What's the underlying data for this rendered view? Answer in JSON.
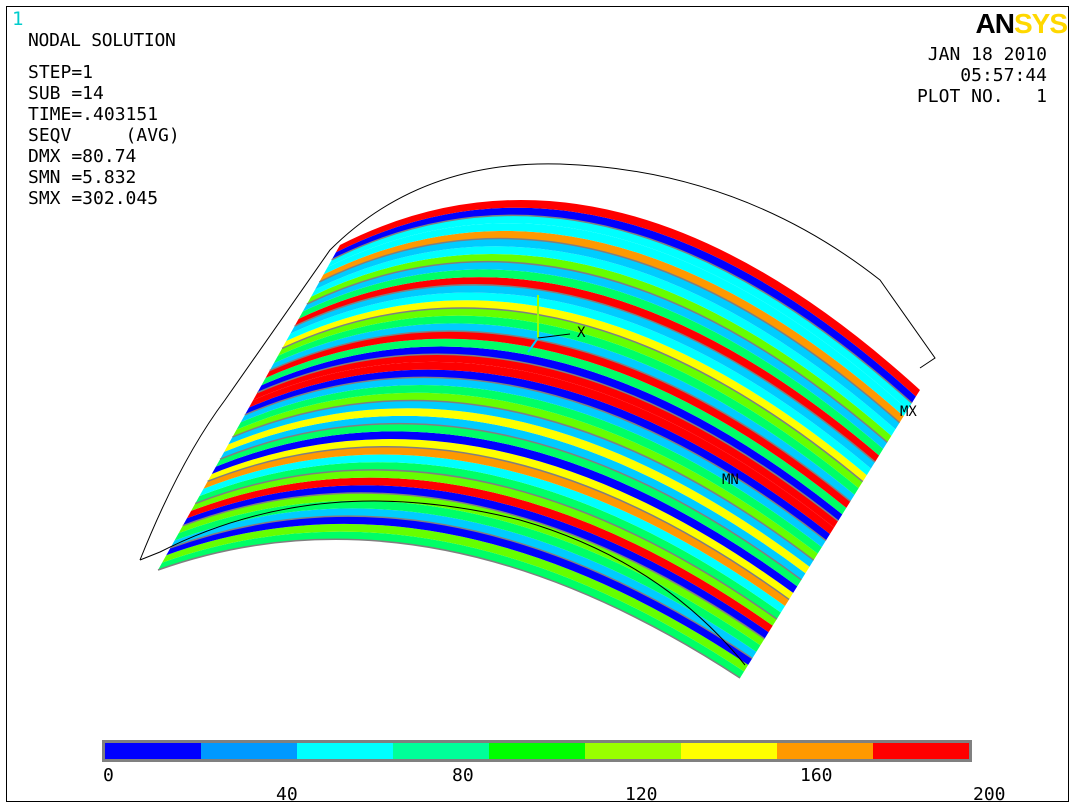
{
  "window_number": "1",
  "logo": {
    "part1": "AN",
    "part2": "SYS"
  },
  "title": "NODAL SOLUTION",
  "info": [
    "STEP=1",
    "SUB =14",
    "TIME=.403151",
    "SEQV     (AVG)",
    "DMX =80.74",
    "SMN =5.832",
    "SMX =302.045"
  ],
  "stamp": {
    "date": "JAN 18 2010",
    "time": "05:57:44",
    "plot": "PLOT NO.   1"
  },
  "annotations": {
    "max": "MX",
    "min": "MN",
    "axis_x": "X"
  },
  "legend": {
    "colors": [
      "#0000ff",
      "#0099ff",
      "#00ffff",
      "#00ff99",
      "#00ff00",
      "#99ff00",
      "#ffff00",
      "#ff9900",
      "#ff0000"
    ],
    "top_labels": [
      "0",
      "80",
      "160"
    ],
    "bottom_labels": [
      "40",
      "120",
      "200"
    ]
  },
  "stripe_colors": [
    "#0000ff",
    "#00ccff",
    "#00ffff",
    "#00ff66",
    "#66ff00",
    "#ffff00",
    "#ff9900",
    "#ff0000"
  ]
}
